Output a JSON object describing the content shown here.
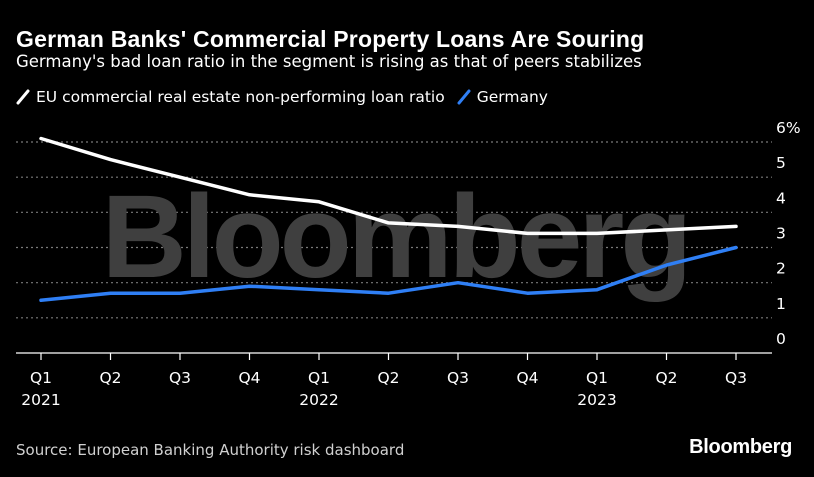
{
  "title": "German Banks' Commercial Property Loans Are Souring",
  "subtitle": "Germany's bad loan ratio in the segment is rising as that of peers stabilizes",
  "source": "Source: European Banking Authority risk dashboard",
  "brand": "Bloomberg",
  "watermark": "Bloomberg",
  "colors": {
    "eu": "#ffffff",
    "germany": "#2f7ff5",
    "grid": "#7a7a7a",
    "background": "#000000"
  },
  "chart_data": {
    "type": "line",
    "title": "German Banks' Commercial Property Loans Are Souring",
    "xlabel": "",
    "ylabel": "",
    "ylim": [
      0,
      6
    ],
    "y_ticks": [
      0,
      1,
      2,
      3,
      4,
      5,
      6
    ],
    "y_tick_labels": [
      "0",
      "1",
      "2",
      "3",
      "4",
      "5",
      "6%"
    ],
    "categories": [
      "Q1",
      "Q2",
      "Q3",
      "Q4",
      "Q1",
      "Q2",
      "Q3",
      "Q4",
      "Q1",
      "Q2",
      "Q3"
    ],
    "year_labels": [
      "2021",
      "",
      "",
      "",
      "2022",
      "",
      "",
      "",
      "2023",
      "",
      ""
    ],
    "grid": true,
    "legend_position": "top-left",
    "series": [
      {
        "name": "EU commercial real estate non-performing loan ratio",
        "color": "#ffffff",
        "values": [
          6.1,
          5.5,
          5.0,
          4.5,
          4.3,
          3.7,
          3.6,
          3.4,
          3.4,
          3.5,
          3.6
        ]
      },
      {
        "name": "Germany",
        "color": "#2f7ff5",
        "values": [
          1.5,
          1.7,
          1.7,
          1.9,
          1.8,
          1.7,
          2.0,
          1.7,
          1.8,
          2.5,
          3.0
        ]
      }
    ]
  }
}
